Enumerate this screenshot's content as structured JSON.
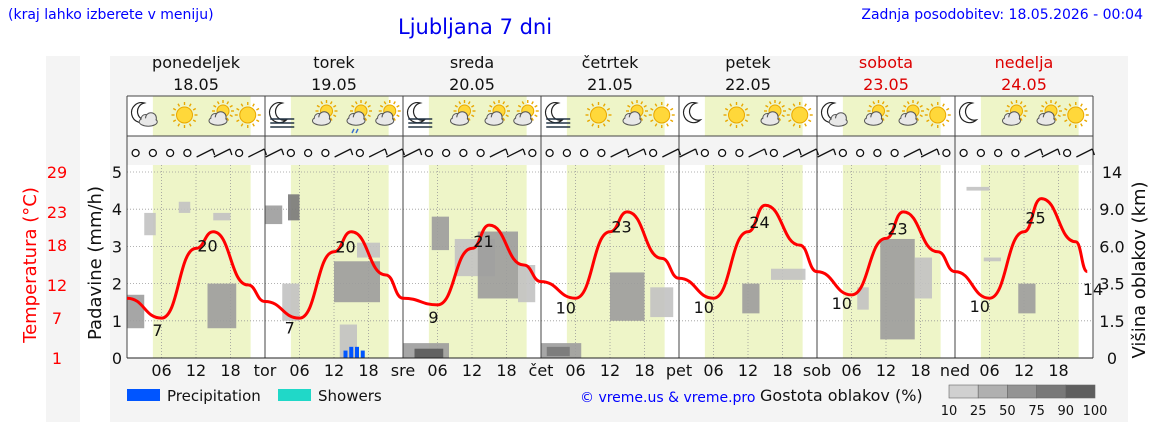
{
  "header": {
    "left_note": "(kraj lahko izberete v meniju)",
    "title": "Ljubljana 7 dni",
    "updated": "Zadnja posodobitev: 18.05.2026 - 00:04"
  },
  "days": [
    {
      "name": "ponedeljek",
      "date": "18.05",
      "abbr": "",
      "weekend": false
    },
    {
      "name": "torek",
      "date": "19.05",
      "abbr": "tor",
      "weekend": false
    },
    {
      "name": "sreda",
      "date": "20.05",
      "abbr": "sre",
      "weekend": false
    },
    {
      "name": "četrtek",
      "date": "21.05",
      "abbr": "čet",
      "weekend": false
    },
    {
      "name": "petek",
      "date": "22.05",
      "abbr": "pet",
      "weekend": false
    },
    {
      "name": "sobota",
      "date": "23.05",
      "abbr": "sob",
      "weekend": true
    },
    {
      "name": "nedelja",
      "date": "24.05",
      "abbr": "ned",
      "weekend": true
    }
  ],
  "icons": [
    [
      "moon-cloud-icon",
      "sun-icon",
      "sun-cloud-icon",
      "sun-icon"
    ],
    [
      "moon-fog-icon",
      "sun-cloud-icon",
      "sun-cloud-drizzle-icon",
      "sun-cloud-icon"
    ],
    [
      "moon-fog-icon",
      "sun-cloud-icon",
      "sun-cloud-icon",
      "sun-cloud-icon"
    ],
    [
      "moon-fog-icon",
      "sun-icon",
      "sun-cloud-icon",
      "sun-icon"
    ],
    [
      "moon-icon",
      "sun-icon",
      "sun-cloud-icon",
      "sun-icon"
    ],
    [
      "moon-cloud-icon",
      "sun-cloud-icon",
      "sun-cloud-icon",
      "sun-icon"
    ],
    [
      "moon-icon",
      "sun-cloud-icon",
      "sun-cloud-icon",
      "sun-icon"
    ]
  ],
  "wind_row": "wind-barbs-icon",
  "legend": {
    "precipitation": "Precipitation",
    "showers": "Showers",
    "credit": "© vreme.us & vreme.pro",
    "cloud_density_title": "Gostota oblakov (%)",
    "cloud_density_levels": [
      "10",
      "25",
      "50",
      "75",
      "90",
      "100"
    ]
  },
  "colors": {
    "temperature": "#ff0000",
    "precipitation": "#0055ff",
    "showers": "#20d8c8",
    "daytime_band": "#eef5c8",
    "weekend_text": "#dd0000",
    "link_blue": "#0000ff"
  },
  "chart_data": {
    "type": "line",
    "title": "Ljubljana 7 dni",
    "x_hour_ticks": [
      "06",
      "12",
      "18"
    ],
    "y_left_temperature": {
      "label": "Temperatura (°C)",
      "ticks": [
        1,
        7,
        12,
        18,
        23,
        29
      ],
      "range": [
        1,
        29
      ]
    },
    "y_left_precipitation": {
      "label": "Padavine (mm/h)",
      "ticks": [
        0,
        1,
        2,
        3,
        4,
        5
      ],
      "range": [
        0,
        5
      ]
    },
    "y_right_cloud_height": {
      "label": "Višina oblakov (km)",
      "ticks": [
        "0",
        "1.5",
        "3.5",
        "6.0",
        "9.0",
        "14"
      ]
    },
    "series": [
      {
        "name": "Temperatura",
        "x_hours": [
          0,
          6,
          12,
          15,
          21,
          24,
          30,
          36,
          39,
          45,
          48,
          54,
          60,
          63,
          69,
          72,
          78,
          84,
          87,
          93,
          96,
          102,
          108,
          111,
          117,
          120,
          126,
          132,
          135,
          141,
          144,
          150,
          156,
          159,
          165,
          167
        ],
        "values": [
          10,
          7,
          17.5,
          20,
          12,
          9.5,
          7,
          17,
          20,
          13.5,
          10,
          9,
          17.5,
          21,
          15,
          12.5,
          10,
          20,
          23,
          16,
          13,
          10,
          20,
          24,
          18,
          14,
          10.5,
          19,
          23,
          17,
          14,
          10,
          20,
          25,
          18.5,
          14
        ]
      }
    ],
    "data_labels": [
      {
        "text": "7",
        "x_hour": 6
      },
      {
        "text": "20",
        "x_hour": 14
      },
      {
        "text": "7",
        "x_hour": 29
      },
      {
        "text": "20",
        "x_hour": 38
      },
      {
        "text": "9",
        "x_hour": 54
      },
      {
        "text": "21",
        "x_hour": 62
      },
      {
        "text": "10",
        "x_hour": 77
      },
      {
        "text": "23",
        "x_hour": 86
      },
      {
        "text": "10",
        "x_hour": 101
      },
      {
        "text": "24",
        "x_hour": 110
      },
      {
        "text": "10",
        "x_hour": 125
      },
      {
        "text": "23",
        "x_hour": 134
      },
      {
        "text": "10",
        "x_hour": 149
      },
      {
        "text": "25",
        "x_hour": 158
      },
      {
        "text": "14",
        "x_hour": 167
      }
    ],
    "precipitation": [
      {
        "x_hour": 38,
        "mm": 0.2
      },
      {
        "x_hour": 39,
        "mm": 0.3
      },
      {
        "x_hour": 40,
        "mm": 0.3
      },
      {
        "x_hour": 41,
        "mm": 0.2
      }
    ],
    "cloud_blocks": [
      {
        "x0": 0,
        "x1": 3,
        "y0": 0.8,
        "y1": 1.7,
        "density": 50
      },
      {
        "x0": 3,
        "x1": 5,
        "y0": 3.3,
        "y1": 3.9,
        "density": 25
      },
      {
        "x0": 9,
        "x1": 11,
        "y0": 3.9,
        "y1": 4.2,
        "density": 25
      },
      {
        "x0": 14,
        "x1": 19,
        "y0": 0.8,
        "y1": 2.0,
        "density": 50
      },
      {
        "x0": 15,
        "x1": 18,
        "y0": 3.7,
        "y1": 3.9,
        "density": 25
      },
      {
        "x0": 24,
        "x1": 27,
        "y0": 3.6,
        "y1": 4.1,
        "density": 50
      },
      {
        "x0": 27,
        "x1": 30,
        "y0": 1.0,
        "y1": 2.0,
        "density": 25
      },
      {
        "x0": 28,
        "x1": 30,
        "y0": 3.7,
        "y1": 4.4,
        "density": 75
      },
      {
        "x0": 36,
        "x1": 44,
        "y0": 1.5,
        "y1": 2.6,
        "density": 50
      },
      {
        "x0": 37,
        "x1": 40,
        "y0": 0.0,
        "y1": 0.9,
        "density": 25
      },
      {
        "x0": 40,
        "x1": 44,
        "y0": 2.7,
        "y1": 3.1,
        "density": 25
      },
      {
        "x0": 48,
        "x1": 56,
        "y0": 0.0,
        "y1": 0.4,
        "density": 50
      },
      {
        "x0": 50,
        "x1": 55,
        "y0": 0.0,
        "y1": 0.25,
        "density": 90
      },
      {
        "x0": 53,
        "x1": 56,
        "y0": 2.9,
        "y1": 3.8,
        "density": 50
      },
      {
        "x0": 57,
        "x1": 64,
        "y0": 2.2,
        "y1": 3.2,
        "density": 25
      },
      {
        "x0": 61,
        "x1": 68,
        "y0": 1.6,
        "y1": 3.4,
        "density": 50
      },
      {
        "x0": 68,
        "x1": 71,
        "y0": 1.5,
        "y1": 2.5,
        "density": 25
      },
      {
        "x0": 72,
        "x1": 79,
        "y0": 0.0,
        "y1": 0.4,
        "density": 50
      },
      {
        "x0": 73,
        "x1": 77,
        "y0": 0.05,
        "y1": 0.3,
        "density": 75
      },
      {
        "x0": 84,
        "x1": 90,
        "y0": 1.0,
        "y1": 2.3,
        "density": 50
      },
      {
        "x0": 91,
        "x1": 95,
        "y0": 1.1,
        "y1": 1.9,
        "density": 25
      },
      {
        "x0": 107,
        "x1": 110,
        "y0": 1.2,
        "y1": 2.0,
        "density": 50
      },
      {
        "x0": 112,
        "x1": 118,
        "y0": 2.1,
        "y1": 2.4,
        "density": 25
      },
      {
        "x0": 127,
        "x1": 129,
        "y0": 1.3,
        "y1": 1.9,
        "density": 25
      },
      {
        "x0": 131,
        "x1": 137,
        "y0": 0.5,
        "y1": 3.2,
        "density": 50
      },
      {
        "x0": 137,
        "x1": 140,
        "y0": 1.6,
        "y1": 2.7,
        "density": 25
      },
      {
        "x0": 146,
        "x1": 150,
        "y0": 4.5,
        "y1": 4.6,
        "density": 25
      },
      {
        "x0": 149,
        "x1": 152,
        "y0": 2.6,
        "y1": 2.7,
        "density": 25
      },
      {
        "x0": 155,
        "x1": 158,
        "y0": 1.2,
        "y1": 2.0,
        "density": 50
      }
    ]
  }
}
